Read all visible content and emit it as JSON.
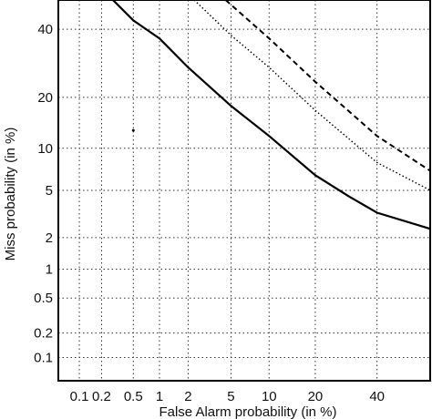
{
  "chart_data": {
    "type": "line",
    "title": "",
    "xlabel": "False Alarm probability (in %)",
    "ylabel": "Miss probability (in %)",
    "xscale": "probit",
    "yscale": "probit",
    "xlim": [
      0.05,
      60
    ],
    "ylim": [
      0.05,
      50
    ],
    "x_ticks": [
      0.1,
      0.2,
      0.5,
      1,
      2,
      5,
      10,
      20,
      40
    ],
    "x_tick_labels": [
      "0.1",
      "0.2",
      "0.5",
      "1",
      "2",
      "5",
      "10",
      "20",
      "40"
    ],
    "y_ticks": [
      0.1,
      0.2,
      0.5,
      1,
      2,
      5,
      10,
      20,
      40
    ],
    "y_tick_labels": [
      "0.1",
      "0.2",
      "0.5",
      "1",
      "2",
      "5",
      "10",
      "20",
      "40"
    ],
    "grid": true,
    "legend": "none",
    "series": [
      {
        "style": "solid",
        "points": [
          [
            0.28,
            50
          ],
          [
            0.5,
            43
          ],
          [
            1,
            37
          ],
          [
            2,
            28
          ],
          [
            5,
            18
          ],
          [
            10,
            12
          ],
          [
            20,
            6.5
          ],
          [
            30,
            4.5
          ],
          [
            40,
            3.3
          ],
          [
            60,
            2.4
          ]
        ]
      },
      {
        "style": "dotted",
        "points": [
          [
            2.3,
            50
          ],
          [
            5,
            38
          ],
          [
            10,
            28
          ],
          [
            20,
            17
          ],
          [
            40,
            8
          ],
          [
            60,
            5
          ]
        ]
      },
      {
        "style": "dashed",
        "points": [
          [
            4.5,
            50
          ],
          [
            10,
            37
          ],
          [
            20,
            24
          ],
          [
            40,
            12
          ],
          [
            60,
            7
          ]
        ]
      }
    ],
    "annotations": [
      {
        "type": "marker",
        "x": 0.5,
        "y": 13
      }
    ]
  }
}
